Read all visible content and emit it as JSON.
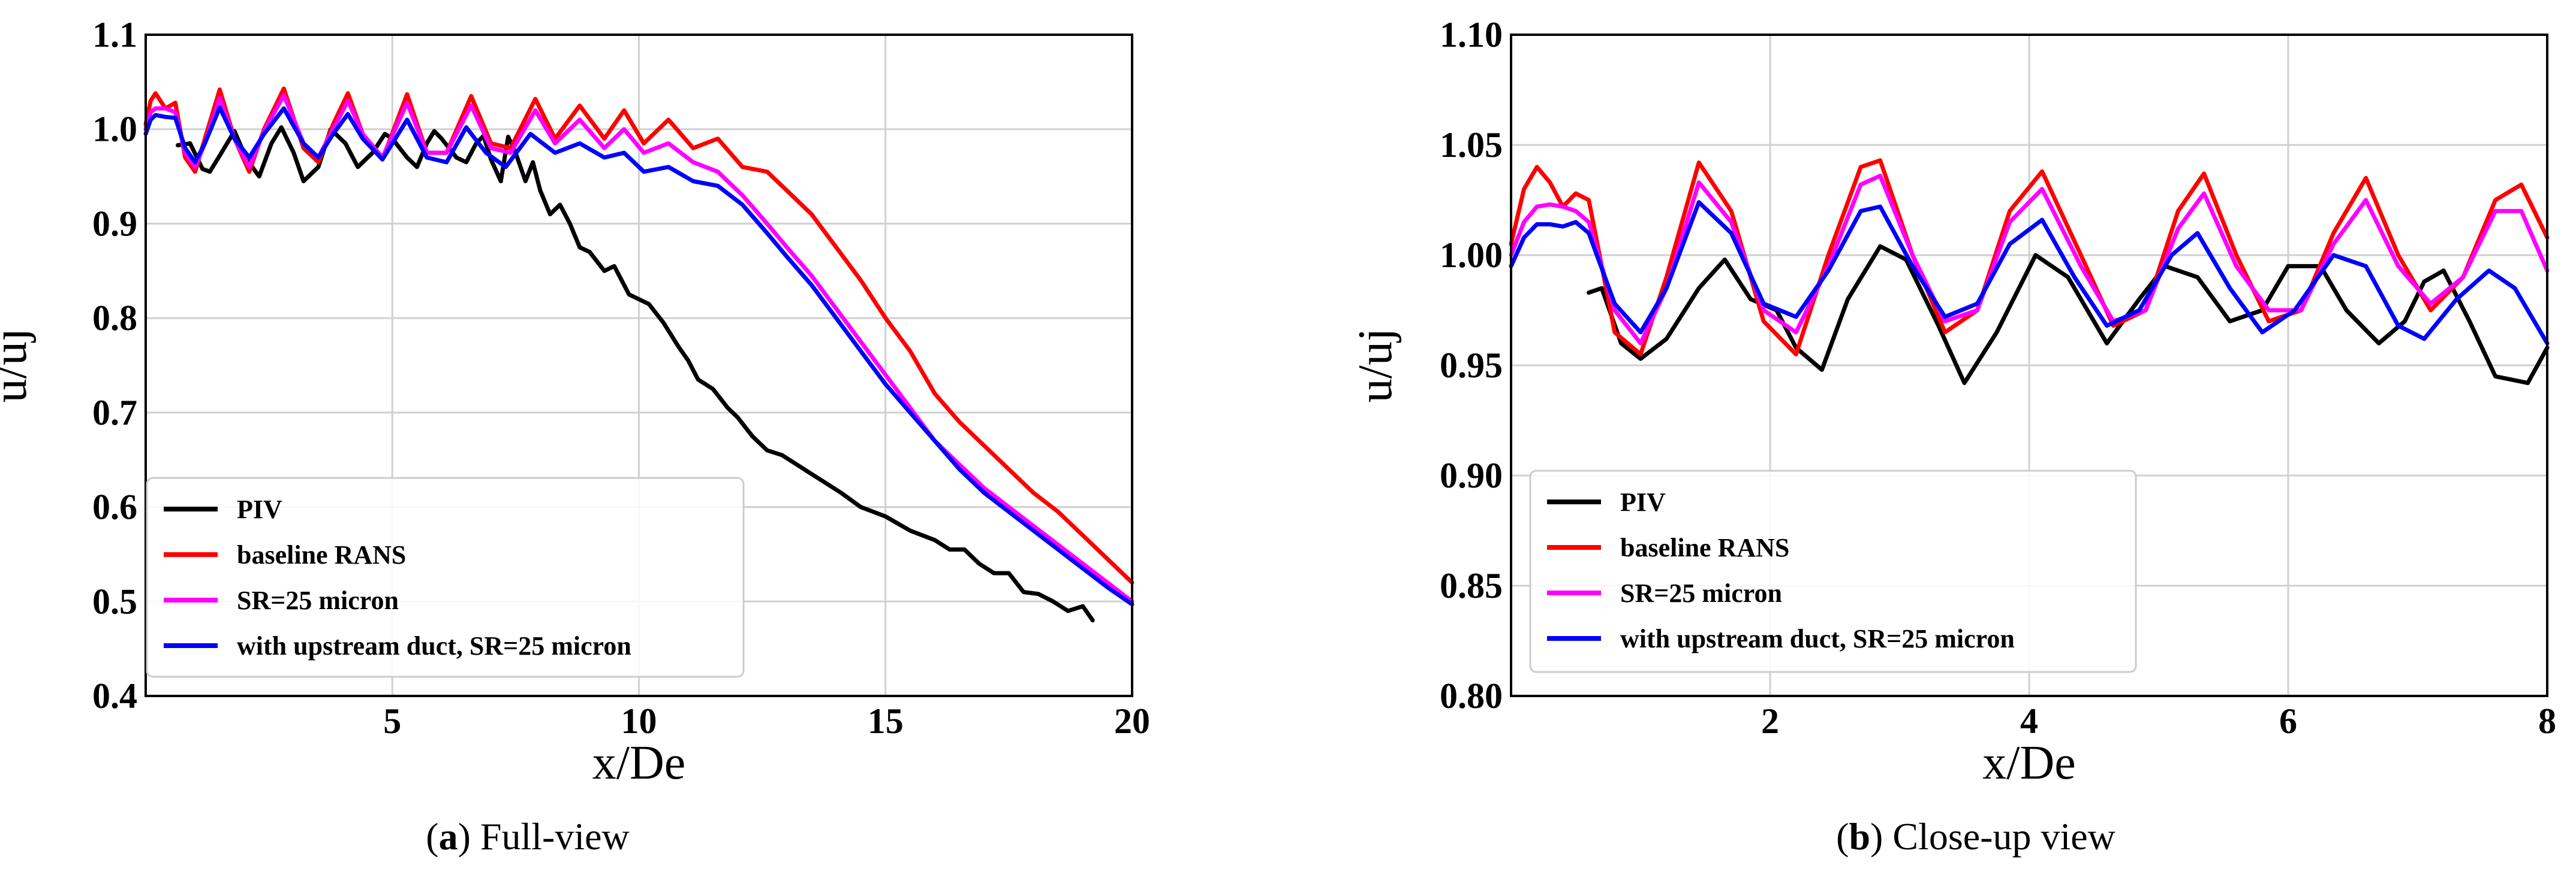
{
  "chart_data": [
    {
      "type": "line",
      "caption_letter": "a",
      "caption_text": "Full-view",
      "xlabel": "x/De",
      "ylabel": "u/uj",
      "xlim": [
        0,
        20
      ],
      "ylim": [
        0.4,
        1.1
      ],
      "xticks": [
        5,
        10,
        15,
        20
      ],
      "xtick_labels": [
        "5",
        "10",
        "15",
        "20"
      ],
      "yticks": [
        0.4,
        0.5,
        0.6,
        0.7,
        0.8,
        0.9,
        1.0,
        1.1
      ],
      "ytick_labels": [
        "0.4",
        "0.5",
        "0.6",
        "0.7",
        "0.8",
        "0.9",
        "1.0",
        "1.1"
      ],
      "grid": true,
      "legend_position": "lower-left",
      "series": [
        {
          "name": "PIV",
          "color": "#000000",
          "x": [
            0.65,
            0.9,
            1.15,
            1.3,
            1.5,
            1.8,
            2.05,
            2.3,
            2.55,
            2.75,
            3.0,
            3.2,
            3.5,
            3.75,
            4.05,
            4.3,
            4.6,
            4.85,
            5.0,
            5.3,
            5.5,
            5.7,
            5.85,
            6.0,
            6.3,
            6.5,
            6.7,
            6.85,
            7.0,
            7.2,
            7.35,
            7.5,
            7.7,
            7.85,
            8.0,
            8.2,
            8.4,
            8.6,
            8.8,
            9.0,
            9.3,
            9.5,
            9.8,
            10.0,
            10.2,
            10.5,
            10.8,
            11.0,
            11.2,
            11.5,
            11.8,
            12.0,
            12.3,
            12.6,
            12.9,
            13.2,
            13.5,
            13.8,
            14.1,
            14.5,
            15.0,
            15.5,
            16.0,
            16.3,
            16.6,
            16.9,
            17.2,
            17.5,
            17.8,
            18.1,
            18.4,
            18.7,
            19.0,
            19.2
          ],
          "y": [
            0.983,
            0.985,
            0.958,
            0.955,
            0.972,
            0.998,
            0.968,
            0.95,
            0.985,
            1.002,
            0.975,
            0.945,
            0.96,
            1.0,
            0.985,
            0.96,
            0.975,
            0.995,
            0.99,
            0.97,
            0.96,
            0.985,
            0.998,
            0.99,
            0.97,
            0.965,
            0.985,
            0.993,
            0.968,
            0.945,
            0.992,
            0.975,
            0.945,
            0.965,
            0.935,
            0.91,
            0.92,
            0.9,
            0.875,
            0.87,
            0.85,
            0.855,
            0.825,
            0.82,
            0.815,
            0.795,
            0.77,
            0.755,
            0.735,
            0.725,
            0.705,
            0.695,
            0.675,
            0.66,
            0.655,
            0.645,
            0.635,
            0.625,
            0.615,
            0.6,
            0.59,
            0.575,
            0.565,
            0.555,
            0.555,
            0.54,
            0.53,
            0.53,
            0.51,
            0.508,
            0.5,
            0.49,
            0.495,
            0.48
          ]
        },
        {
          "name": "baseline RANS",
          "color": "#ff0000",
          "x": [
            0.0,
            0.1,
            0.2,
            0.4,
            0.6,
            0.8,
            1.0,
            1.2,
            1.5,
            1.8,
            2.1,
            2.4,
            2.8,
            3.2,
            3.5,
            3.8,
            4.1,
            4.4,
            4.8,
            5.3,
            5.7,
            6.1,
            6.6,
            7.0,
            7.4,
            7.9,
            8.3,
            8.8,
            9.3,
            9.7,
            10.1,
            10.6,
            11.1,
            11.6,
            12.1,
            12.6,
            13.0,
            13.5,
            14.0,
            14.5,
            15.0,
            15.5,
            16.0,
            16.5,
            17.0,
            17.5,
            18.0,
            18.5,
            19.0,
            19.5,
            20.0
          ],
          "y": [
            1.005,
            1.03,
            1.038,
            1.022,
            1.028,
            0.97,
            0.955,
            0.99,
            1.042,
            0.99,
            0.955,
            1.0,
            1.043,
            0.98,
            0.965,
            1.005,
            1.038,
            0.995,
            0.968,
            1.037,
            0.975,
            0.975,
            1.035,
            0.985,
            0.98,
            1.032,
            0.99,
            1.025,
            0.99,
            1.02,
            0.985,
            1.01,
            0.98,
            0.99,
            0.96,
            0.955,
            0.935,
            0.91,
            0.875,
            0.84,
            0.8,
            0.765,
            0.72,
            0.69,
            0.665,
            0.64,
            0.615,
            0.595,
            0.57,
            0.545,
            0.52
          ]
        },
        {
          "name": "SR=25 micron",
          "color": "#ff00ff",
          "x": [
            0.0,
            0.1,
            0.2,
            0.4,
            0.6,
            0.8,
            1.0,
            1.2,
            1.5,
            1.8,
            2.1,
            2.4,
            2.8,
            3.2,
            3.5,
            3.8,
            4.1,
            4.4,
            4.8,
            5.3,
            5.7,
            6.1,
            6.6,
            7.0,
            7.4,
            7.9,
            8.3,
            8.8,
            9.3,
            9.7,
            10.1,
            10.6,
            11.1,
            11.6,
            12.1,
            12.6,
            13.0,
            13.5,
            14.0,
            14.5,
            15.0,
            15.5,
            16.0,
            16.5,
            17.0,
            17.5,
            18.0,
            18.5,
            19.0,
            19.5,
            20.0
          ],
          "y": [
            1.0,
            1.018,
            1.022,
            1.022,
            1.018,
            0.975,
            0.96,
            0.985,
            1.033,
            0.99,
            0.96,
            0.998,
            1.036,
            0.985,
            0.97,
            1.0,
            1.03,
            0.995,
            0.97,
            1.028,
            0.975,
            0.975,
            1.025,
            0.98,
            0.975,
            1.02,
            0.985,
            1.01,
            0.98,
            1.0,
            0.975,
            0.985,
            0.965,
            0.955,
            0.93,
            0.9,
            0.875,
            0.845,
            0.81,
            0.775,
            0.74,
            0.705,
            0.67,
            0.645,
            0.62,
            0.6,
            0.58,
            0.56,
            0.54,
            0.52,
            0.5
          ]
        },
        {
          "name": "with upstream duct, SR=25 micron",
          "color": "#0000ff",
          "x": [
            0.0,
            0.1,
            0.2,
            0.4,
            0.6,
            0.8,
            1.0,
            1.2,
            1.5,
            1.8,
            2.1,
            2.4,
            2.8,
            3.2,
            3.5,
            3.8,
            4.1,
            4.4,
            4.8,
            5.3,
            5.7,
            6.1,
            6.5,
            6.9,
            7.3,
            7.8,
            8.3,
            8.8,
            9.3,
            9.7,
            10.1,
            10.6,
            11.1,
            11.6,
            12.1,
            12.6,
            13.0,
            13.5,
            14.0,
            14.5,
            15.0,
            15.5,
            16.0,
            16.5,
            17.0,
            17.5,
            18.0,
            18.5,
            19.0,
            19.5,
            20.0
          ],
          "y": [
            0.995,
            1.01,
            1.015,
            1.013,
            1.012,
            0.98,
            0.965,
            0.985,
            1.023,
            0.99,
            0.97,
            0.995,
            1.022,
            0.985,
            0.97,
            0.995,
            1.016,
            0.99,
            0.968,
            1.01,
            0.97,
            0.965,
            1.002,
            0.975,
            0.96,
            0.995,
            0.975,
            0.985,
            0.97,
            0.975,
            0.955,
            0.96,
            0.945,
            0.94,
            0.92,
            0.89,
            0.865,
            0.835,
            0.8,
            0.765,
            0.73,
            0.7,
            0.67,
            0.64,
            0.615,
            0.595,
            0.575,
            0.555,
            0.535,
            0.515,
            0.497
          ]
        }
      ]
    },
    {
      "type": "line",
      "caption_letter": "b",
      "caption_text": "Close-up view",
      "xlabel": "x/De",
      "ylabel": "u/uj",
      "xlim": [
        0,
        8
      ],
      "ylim": [
        0.8,
        1.1
      ],
      "xticks": [
        2,
        4,
        6,
        8
      ],
      "xtick_labels": [
        "2",
        "4",
        "6",
        "8"
      ],
      "yticks": [
        0.8,
        0.85,
        0.9,
        0.95,
        1.0,
        1.05,
        1.1
      ],
      "ytick_labels": [
        "0.80",
        "0.85",
        "0.90",
        "0.95",
        "1.00",
        "1.05",
        "1.10"
      ],
      "grid": true,
      "legend_position": "lower-left",
      "series": [
        {
          "name": "PIV",
          "color": "#000000",
          "x": [
            0.6,
            0.7,
            0.85,
            1.0,
            1.2,
            1.45,
            1.65,
            1.85,
            2.05,
            2.2,
            2.4,
            2.6,
            2.85,
            3.05,
            3.3,
            3.5,
            3.75,
            4.05,
            4.3,
            4.6,
            4.85,
            5.05,
            5.3,
            5.55,
            5.8,
            6.0,
            6.25,
            6.45,
            6.7,
            6.9,
            7.05,
            7.2,
            7.4,
            7.6,
            7.85,
            8.0
          ],
          "y": [
            0.983,
            0.985,
            0.96,
            0.953,
            0.962,
            0.985,
            0.998,
            0.98,
            0.975,
            0.958,
            0.948,
            0.98,
            1.004,
            0.998,
            0.968,
            0.942,
            0.965,
            1.0,
            0.99,
            0.96,
            0.98,
            0.995,
            0.99,
            0.97,
            0.975,
            0.995,
            0.995,
            0.975,
            0.96,
            0.97,
            0.988,
            0.993,
            0.97,
            0.945,
            0.942,
            0.958
          ]
        },
        {
          "name": "baseline RANS",
          "color": "#ff0000",
          "x": [
            0.0,
            0.1,
            0.2,
            0.3,
            0.4,
            0.5,
            0.6,
            0.8,
            1.0,
            1.2,
            1.45,
            1.7,
            1.95,
            2.2,
            2.45,
            2.7,
            2.85,
            3.1,
            3.35,
            3.6,
            3.85,
            4.1,
            4.4,
            4.65,
            4.9,
            5.15,
            5.35,
            5.6,
            5.85,
            6.1,
            6.35,
            6.6,
            6.85,
            7.1,
            7.35,
            7.6,
            7.8,
            8.0
          ],
          "y": [
            1.005,
            1.03,
            1.04,
            1.033,
            1.022,
            1.028,
            1.025,
            0.965,
            0.955,
            0.99,
            1.042,
            1.02,
            0.97,
            0.955,
            1.0,
            1.04,
            1.043,
            1.0,
            0.965,
            0.975,
            1.02,
            1.038,
            1.0,
            0.968,
            0.975,
            1.02,
            1.037,
            1.0,
            0.97,
            0.975,
            1.01,
            1.035,
            1.0,
            0.975,
            0.99,
            1.025,
            1.032,
            1.008
          ]
        },
        {
          "name": "SR=25 micron",
          "color": "#ff00ff",
          "x": [
            0.0,
            0.1,
            0.2,
            0.3,
            0.4,
            0.5,
            0.6,
            0.8,
            1.0,
            1.2,
            1.45,
            1.7,
            1.95,
            2.2,
            2.45,
            2.7,
            2.85,
            3.1,
            3.35,
            3.6,
            3.85,
            4.1,
            4.4,
            4.65,
            4.9,
            5.15,
            5.35,
            5.6,
            5.85,
            6.1,
            6.35,
            6.6,
            6.85,
            7.1,
            7.35,
            7.6,
            7.8,
            8.0
          ],
          "y": [
            1.0,
            1.015,
            1.022,
            1.023,
            1.022,
            1.02,
            1.015,
            0.975,
            0.96,
            0.985,
            1.033,
            1.015,
            0.975,
            0.965,
            0.995,
            1.032,
            1.036,
            1.0,
            0.97,
            0.975,
            1.015,
            1.03,
            0.995,
            0.97,
            0.975,
            1.012,
            1.028,
            0.995,
            0.975,
            0.975,
            1.005,
            1.025,
            0.995,
            0.978,
            0.99,
            1.02,
            1.02,
            0.993
          ]
        },
        {
          "name": "with upstream duct, SR=25 micron",
          "color": "#0000ff",
          "x": [
            0.0,
            0.1,
            0.2,
            0.3,
            0.4,
            0.5,
            0.6,
            0.8,
            1.0,
            1.2,
            1.45,
            1.7,
            1.95,
            2.2,
            2.45,
            2.7,
            2.85,
            3.1,
            3.35,
            3.6,
            3.85,
            4.1,
            4.35,
            4.6,
            4.85,
            5.1,
            5.3,
            5.55,
            5.8,
            6.05,
            6.35,
            6.6,
            6.85,
            7.05,
            7.3,
            7.55,
            7.75,
            8.0
          ],
          "y": [
            0.995,
            1.008,
            1.014,
            1.014,
            1.013,
            1.015,
            1.01,
            0.978,
            0.965,
            0.985,
            1.024,
            1.01,
            0.978,
            0.972,
            0.993,
            1.02,
            1.022,
            0.995,
            0.972,
            0.978,
            1.005,
            1.016,
            0.99,
            0.968,
            0.975,
            1.0,
            1.01,
            0.985,
            0.965,
            0.975,
            1.0,
            0.995,
            0.968,
            0.962,
            0.98,
            0.993,
            0.985,
            0.96
          ]
        }
      ]
    }
  ]
}
